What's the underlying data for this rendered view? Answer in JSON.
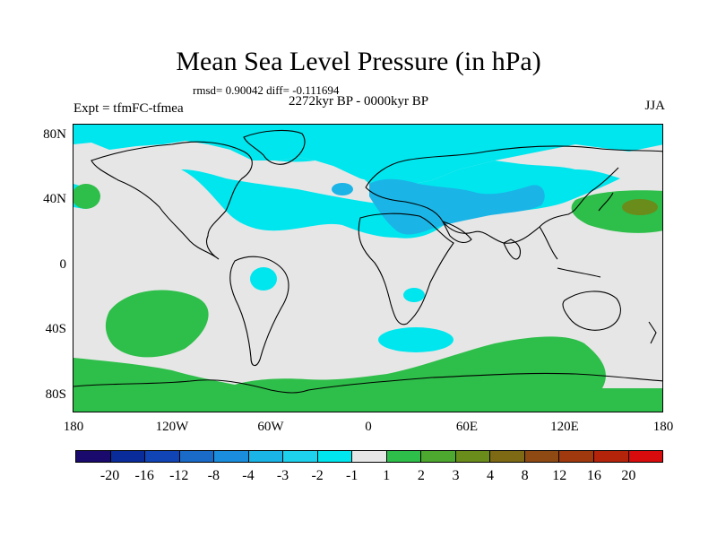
{
  "header": {
    "title": "Mean Sea Level Pressure (in hPa)",
    "stats": "rmsd= 0.90042 diff= -0.111694",
    "period": "2272kyr BP - 0000kyr BP",
    "experiment": "Expt = tfmFC-tfmea",
    "season": "JJA"
  },
  "axes": {
    "lat_labels": [
      "80N",
      "40N",
      "0",
      "40S",
      "80S"
    ],
    "lon_labels": [
      "180",
      "120W",
      "60W",
      "0",
      "60E",
      "120E",
      "180"
    ]
  },
  "legend": {
    "colors": [
      "#1a0a6e",
      "#0a2c9a",
      "#1144b4",
      "#1a6ac8",
      "#1a8edc",
      "#1ab4e6",
      "#1ed2ee",
      "#00e6ee",
      "#e6e6e6",
      "#2ebe4a",
      "#4ca82e",
      "#6a8c1a",
      "#7e6a14",
      "#8e4a12",
      "#a03a0e",
      "#b4240a",
      "#d80c0c"
    ],
    "labels": [
      "-20",
      "-16",
      "-12",
      "-8",
      "-4",
      "-3",
      "-2",
      "-1",
      "1",
      "2",
      "3",
      "4",
      "8",
      "12",
      "16",
      "20"
    ]
  },
  "colors": {
    "neutral_fill": "#e6e6e6",
    "negative_1": "#00e6ee",
    "negative_2": "#1ab4e6",
    "positive_1": "#2ebe4a",
    "positive_2": "#6a8c1a"
  }
}
